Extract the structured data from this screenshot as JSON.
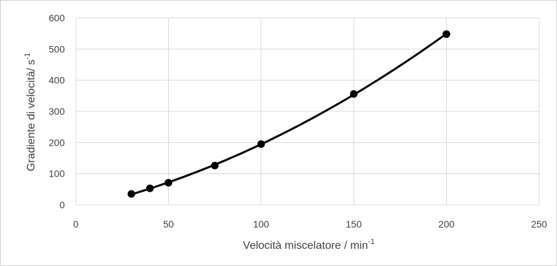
{
  "chart_data": {
    "type": "scatter",
    "title": "",
    "xlabel": {
      "base": "Velocità miscelatore / min",
      "sup": "-1"
    },
    "ylabel": {
      "base": "Gradiente di velocità/ s",
      "sup": "-1"
    },
    "xlim": [
      0,
      250
    ],
    "ylim": [
      0,
      600
    ],
    "x_ticks": [
      0,
      50,
      100,
      150,
      200,
      250
    ],
    "y_ticks": [
      0,
      100,
      200,
      300,
      400,
      500,
      600
    ],
    "grid": true,
    "legend": "none",
    "series": [
      {
        "points": [
          {
            "x": 30,
            "y": 35
          },
          {
            "x": 40,
            "y": 53
          },
          {
            "x": 50,
            "y": 71
          },
          {
            "x": 75,
            "y": 126
          },
          {
            "x": 100,
            "y": 195
          },
          {
            "x": 150,
            "y": 356
          },
          {
            "x": 200,
            "y": 548
          }
        ],
        "trendline": {
          "x_from": 30,
          "x_to": 200
        },
        "marker_color": "#000000",
        "line_color": "#000000"
      }
    ],
    "grid_color": "#d9d9d9"
  }
}
